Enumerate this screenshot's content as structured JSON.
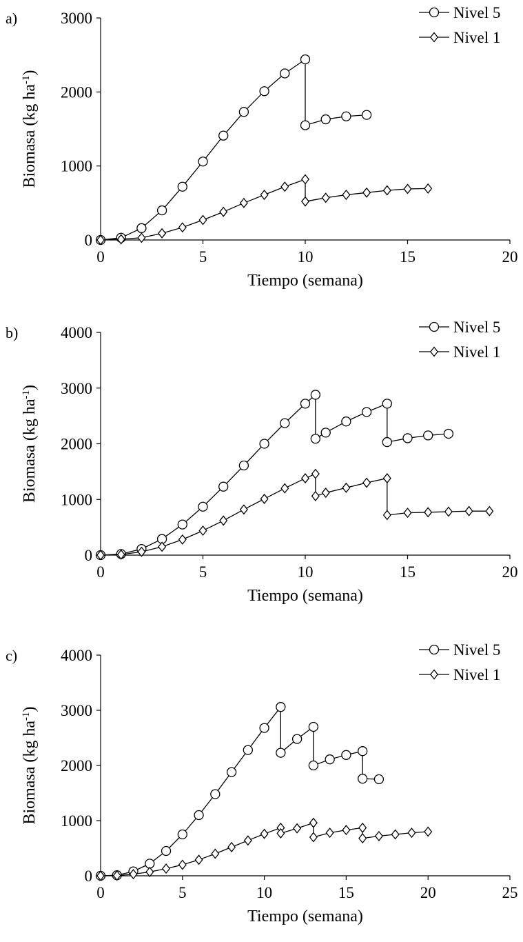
{
  "chart_data": [
    {
      "type": "line",
      "panel_label": "a)",
      "xlabel": "Tiempo (semana)",
      "ylabel": "Biomasa (kg ha",
      "ylabel_sup": "-1",
      "ylabel_tail": ")",
      "xlim": [
        0,
        20
      ],
      "ylim": [
        0,
        3000
      ],
      "xticks": [
        0,
        5,
        10,
        15,
        20
      ],
      "yticks": [
        0,
        1000,
        2000,
        3000
      ],
      "legend_position": "top-right",
      "grid": false,
      "series": [
        {
          "name": "Nivel 5",
          "marker": "circle",
          "points": [
            [
              0,
              0
            ],
            [
              1,
              30
            ],
            [
              2,
              160
            ],
            [
              3,
              400
            ],
            [
              4,
              720
            ],
            [
              5,
              1060
            ],
            [
              6,
              1410
            ],
            [
              7,
              1730
            ],
            [
              8,
              2010
            ],
            [
              9,
              2250
            ],
            [
              10,
              2440
            ],
            [
              10,
              1550
            ],
            [
              11,
              1630
            ],
            [
              12,
              1670
            ],
            [
              13,
              1690
            ]
          ]
        },
        {
          "name": "Nivel 1",
          "marker": "diamond",
          "points": [
            [
              0,
              0
            ],
            [
              1,
              10
            ],
            [
              2,
              30
            ],
            [
              3,
              90
            ],
            [
              4,
              170
            ],
            [
              5,
              270
            ],
            [
              6,
              380
            ],
            [
              7,
              500
            ],
            [
              8,
              610
            ],
            [
              9,
              720
            ],
            [
              10,
              820
            ],
            [
              10,
              520
            ],
            [
              11,
              570
            ],
            [
              12,
              610
            ],
            [
              13,
              640
            ],
            [
              14,
              670
            ],
            [
              15,
              690
            ],
            [
              16,
              695
            ]
          ]
        }
      ]
    },
    {
      "type": "line",
      "panel_label": "b)",
      "xlabel": "Tiempo (semana)",
      "ylabel": "Biomasa (kg ha",
      "ylabel_sup": "-1",
      "ylabel_tail": ")",
      "xlim": [
        0,
        20
      ],
      "ylim": [
        0,
        4000
      ],
      "xticks": [
        0,
        5,
        10,
        15,
        20
      ],
      "yticks": [
        0,
        1000,
        2000,
        3000,
        4000
      ],
      "legend_position": "top-right",
      "grid": false,
      "series": [
        {
          "name": "Nivel 5",
          "marker": "circle",
          "points": [
            [
              0,
              0
            ],
            [
              1,
              20
            ],
            [
              2,
              110
            ],
            [
              3,
              290
            ],
            [
              4,
              550
            ],
            [
              5,
              870
            ],
            [
              6,
              1230
            ],
            [
              7,
              1610
            ],
            [
              8,
              2000
            ],
            [
              9,
              2370
            ],
            [
              10,
              2720
            ],
            [
              10.5,
              2880
            ],
            [
              10.5,
              2090
            ],
            [
              11,
              2200
            ],
            [
              12,
              2400
            ],
            [
              13,
              2570
            ],
            [
              14,
              2720
            ],
            [
              14,
              2030
            ],
            [
              15,
              2100
            ],
            [
              16,
              2150
            ],
            [
              17,
              2180
            ]
          ]
        },
        {
          "name": "Nivel 1",
          "marker": "diamond",
          "points": [
            [
              0,
              0
            ],
            [
              1,
              10
            ],
            [
              2,
              60
            ],
            [
              3,
              150
            ],
            [
              4,
              280
            ],
            [
              5,
              440
            ],
            [
              6,
              620
            ],
            [
              7,
              820
            ],
            [
              8,
              1010
            ],
            [
              9,
              1200
            ],
            [
              10,
              1380
            ],
            [
              10.5,
              1460
            ],
            [
              10.5,
              1060
            ],
            [
              11,
              1120
            ],
            [
              12,
              1210
            ],
            [
              13,
              1300
            ],
            [
              14,
              1380
            ],
            [
              14,
              720
            ],
            [
              15,
              760
            ],
            [
              16,
              770
            ],
            [
              17,
              780
            ],
            [
              18,
              790
            ],
            [
              19,
              790
            ]
          ]
        }
      ]
    },
    {
      "type": "line",
      "panel_label": "c)",
      "xlabel": "Tiempo (semana)",
      "ylabel": "Biomasa (kg ha",
      "ylabel_sup": "-1",
      "ylabel_tail": ")",
      "xlim": [
        0,
        25
      ],
      "ylim": [
        0,
        4000
      ],
      "xticks": [
        0,
        5,
        10,
        15,
        20,
        25
      ],
      "yticks": [
        0,
        1000,
        2000,
        3000,
        4000
      ],
      "legend_position": "top-right",
      "grid": false,
      "series": [
        {
          "name": "Nivel 5",
          "marker": "circle",
          "points": [
            [
              0,
              0
            ],
            [
              1,
              10
            ],
            [
              2,
              80
            ],
            [
              3,
              220
            ],
            [
              4,
              450
            ],
            [
              5,
              750
            ],
            [
              6,
              1100
            ],
            [
              7,
              1480
            ],
            [
              8,
              1880
            ],
            [
              9,
              2280
            ],
            [
              10,
              2680
            ],
            [
              11,
              3060
            ],
            [
              11,
              2230
            ],
            [
              12,
              2480
            ],
            [
              13,
              2700
            ],
            [
              13,
              2000
            ],
            [
              14,
              2110
            ],
            [
              15,
              2190
            ],
            [
              16,
              2260
            ],
            [
              16,
              1760
            ],
            [
              17,
              1750
            ]
          ]
        },
        {
          "name": "Nivel 1",
          "marker": "diamond",
          "points": [
            [
              0,
              0
            ],
            [
              1,
              5
            ],
            [
              2,
              30
            ],
            [
              3,
              70
            ],
            [
              4,
              130
            ],
            [
              5,
              200
            ],
            [
              6,
              290
            ],
            [
              7,
              400
            ],
            [
              8,
              520
            ],
            [
              9,
              640
            ],
            [
              10,
              760
            ],
            [
              11,
              870
            ],
            [
              11,
              770
            ],
            [
              12,
              860
            ],
            [
              13,
              960
            ],
            [
              13,
              700
            ],
            [
              14,
              780
            ],
            [
              15,
              830
            ],
            [
              16,
              870
            ],
            [
              16,
              680
            ],
            [
              17,
              720
            ],
            [
              18,
              750
            ],
            [
              19,
              780
            ],
            [
              20,
              800
            ]
          ]
        }
      ]
    }
  ]
}
